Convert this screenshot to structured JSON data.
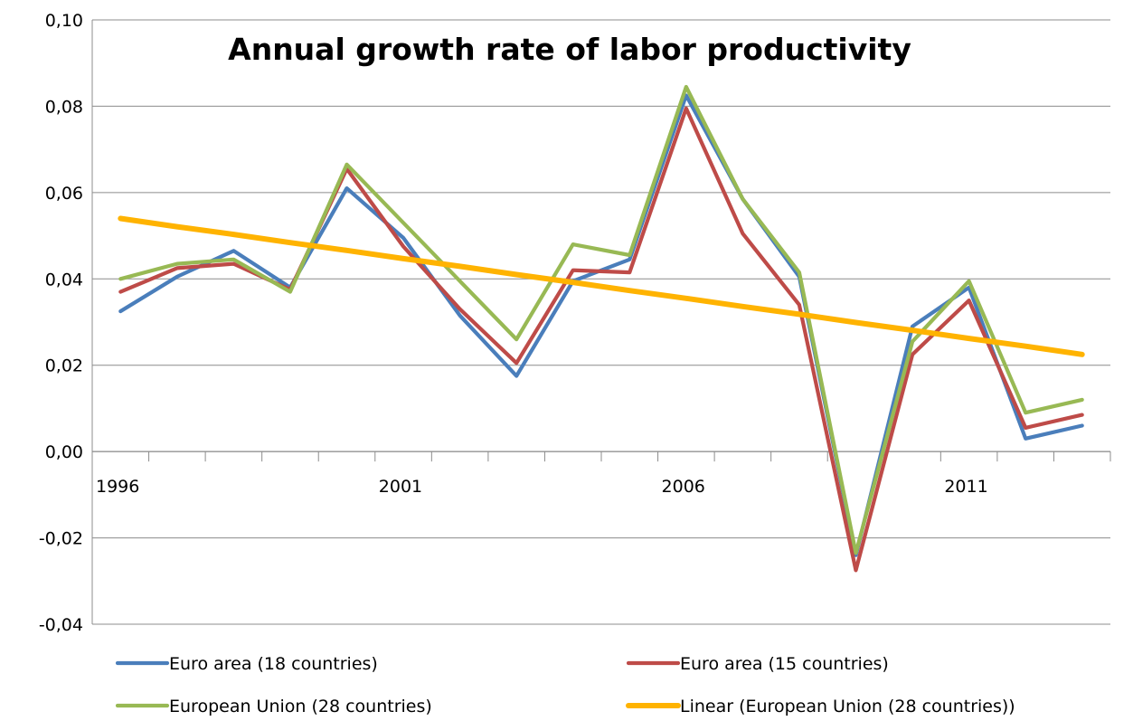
{
  "chart_data": {
    "type": "line",
    "title": "Annual growth rate of labor productivity",
    "xlabel": "",
    "ylabel": "",
    "ylim": [
      -0.04,
      0.1
    ],
    "y_ticks": [
      "0,10",
      "0,08",
      "0,06",
      "0,04",
      "0,02",
      "0,00",
      "-0,02",
      "-0,04"
    ],
    "y_tick_values": [
      0.1,
      0.08,
      0.06,
      0.04,
      0.02,
      0.0,
      -0.02,
      -0.04
    ],
    "x": [
      1996,
      1997,
      1998,
      1999,
      2000,
      2001,
      2002,
      2003,
      2004,
      2005,
      2006,
      2007,
      2008,
      2009,
      2010,
      2011,
      2012,
      2013
    ],
    "x_tick_labels": [
      "1996",
      "2001",
      "2006",
      "2011"
    ],
    "x_tick_label_years": [
      1996,
      2001,
      2006,
      2011
    ],
    "grid": "horizontal",
    "legend_position": "bottom",
    "series": [
      {
        "name": "Euro area (18 countries)",
        "color": "#4a7ebb",
        "values": [
          0.0325,
          0.0405,
          0.0465,
          0.038,
          0.061,
          0.0495,
          0.0315,
          0.0175,
          0.0395,
          0.0445,
          0.0825,
          0.0585,
          0.0405,
          -0.024,
          0.029,
          0.038,
          0.003,
          0.006
        ]
      },
      {
        "name": "Euro area (15 countries)",
        "color": "#be4b48",
        "values": [
          0.037,
          0.0425,
          0.0435,
          0.0375,
          0.0655,
          0.0475,
          0.033,
          0.0205,
          0.042,
          0.0415,
          0.0795,
          0.0505,
          0.034,
          -0.0275,
          0.0225,
          0.035,
          0.0055,
          0.0085
        ]
      },
      {
        "name": "European Union (28 countries)",
        "color": "#98b954",
        "values": [
          0.04,
          0.0435,
          0.0445,
          0.037,
          0.0665,
          0.053,
          0.0395,
          0.026,
          0.048,
          0.0455,
          0.0845,
          0.0585,
          0.0415,
          -0.0235,
          0.0255,
          0.0395,
          0.009,
          0.012
        ]
      },
      {
        "name": "Linear (European Union (28 countries))",
        "color": "#ffb300",
        "trendline": true,
        "values": [
          0.054,
          0.0521,
          0.0503,
          0.0484,
          0.0466,
          0.0447,
          0.0429,
          0.041,
          0.0392,
          0.0373,
          0.0355,
          0.0336,
          0.0318,
          0.0299,
          0.0281,
          0.0262,
          0.0244,
          0.0225
        ]
      }
    ]
  }
}
